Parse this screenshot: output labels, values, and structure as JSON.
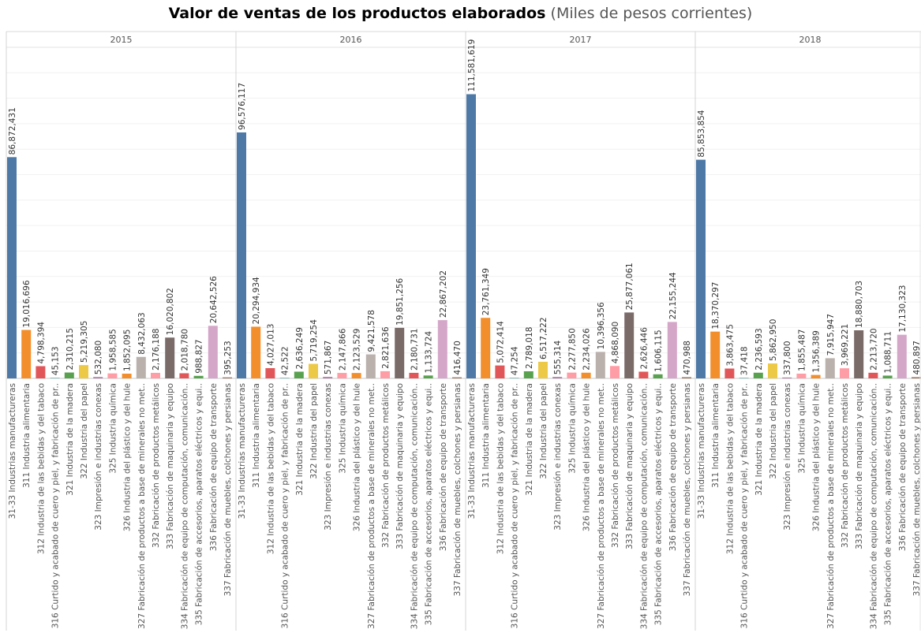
{
  "title": "Valor de ventas de los productos elaborados",
  "subtitle": "(Miles de pesos corrientes)",
  "colors": [
    "#4e79a7",
    "#f28e2b",
    "#e15759",
    "#76b7b2",
    "#59a14f",
    "#edc948",
    "#b07aa1",
    "#ff9da7",
    "#f28e2b",
    "#bab0ac",
    "#ff9da7",
    "#7b6b68",
    "#e15759",
    "#59a14f",
    "#d4a6c8",
    "#9d7660"
  ],
  "chart_data": {
    "type": "bar",
    "categories": [
      "31-33 Industrias manufactureras",
      "311 Industria alimentaria",
      "312 Industria de las bebidas y del tabaco",
      "316 Curtido y acabado de cuero y piel, y fabricación de pr..",
      "321 Industria de la madera",
      "322 Industria del papel",
      "323 Impresión e industrias conexas",
      "325 Industria química",
      "326 Industria del plástico y del hule",
      "327 Fabricación de productos a base de minerales no met..",
      "332 Fabricación de productos metálicos",
      "333 Fabricación de maquinaria y equipo",
      "334 Fabricación de equipo de computación, comunicación..",
      "335 Fabricación de accesorios, aparatos eléctricos y equi..",
      "336 Fabricación de equipo de transporte",
      "337 Fabricación de muebles, colchones y persianas"
    ],
    "panels": [
      {
        "year": "2015",
        "values": [
          86872431,
          19016696,
          4798394,
          45153,
          2310215,
          5219305,
          532080,
          1958585,
          1852095,
          8432063,
          2176188,
          16020802,
          2018780,
          988827,
          20642526,
          395253
        ],
        "labels": [
          "86,872,431",
          "19,016,696",
          "4,798,394",
          "45,153",
          "2,310,215",
          "5,219,305",
          "532,080",
          "1,958,585",
          "1,852,095",
          "8,432,063",
          "2,176,188",
          "16,020,802",
          "2,018,780",
          "988,827",
          "20,642,526",
          "395,253"
        ]
      },
      {
        "year": "2016",
        "values": [
          96576117,
          20294934,
          4027013,
          42522,
          2636249,
          5719254,
          571867,
          2147866,
          2123529,
          9421578,
          2821636,
          19851256,
          2180731,
          1133724,
          22867202,
          416470
        ],
        "labels": [
          "96,576,117",
          "20,294,934",
          "4,027,013",
          "42,522",
          "2,636,249",
          "5,719,254",
          "571,867",
          "2,147,866",
          "2,123,529",
          "9,421,578",
          "2,821,636",
          "19,851,256",
          "2,180,731",
          "1,133,724",
          "22,867,202",
          "416,470"
        ]
      },
      {
        "year": "2017",
        "values": [
          111581619,
          23761349,
          5072414,
          47254,
          2789018,
          6517222,
          555314,
          2277850,
          2234026,
          10396356,
          4868090,
          25877061,
          2626446,
          1606115,
          22155244,
          470988
        ],
        "labels": [
          "111,581,619",
          "23,761,349",
          "5,072,414",
          "47,254",
          "2,789,018",
          "6,517,222",
          "555,314",
          "2,277,850",
          "2,234,026",
          "10,396,356",
          "4,868,090",
          "25,877,061",
          "2,626,446",
          "1,606,115",
          "22,155,244",
          "470,988"
        ]
      },
      {
        "year": "2018",
        "values": [
          85853854,
          18370297,
          3863475,
          37418,
          2236593,
          5862950,
          337800,
          1855487,
          1356389,
          7915947,
          3969221,
          18880703,
          2213720,
          1088711,
          17130323,
          480897
        ],
        "labels": [
          "85,853,854",
          "18,370,297",
          "3,863,475",
          "37,418",
          "2,236,593",
          "5,862,950",
          "337,800",
          "1,855,487",
          "1,356,389",
          "7,915,947",
          "3,969,221",
          "18,880,703",
          "2,213,720",
          "1,088,711",
          "17,130,323",
          "480,897"
        ]
      }
    ],
    "ylim": [
      0,
      130000000
    ],
    "grid": true,
    "xlabel": "",
    "ylabel": ""
  }
}
